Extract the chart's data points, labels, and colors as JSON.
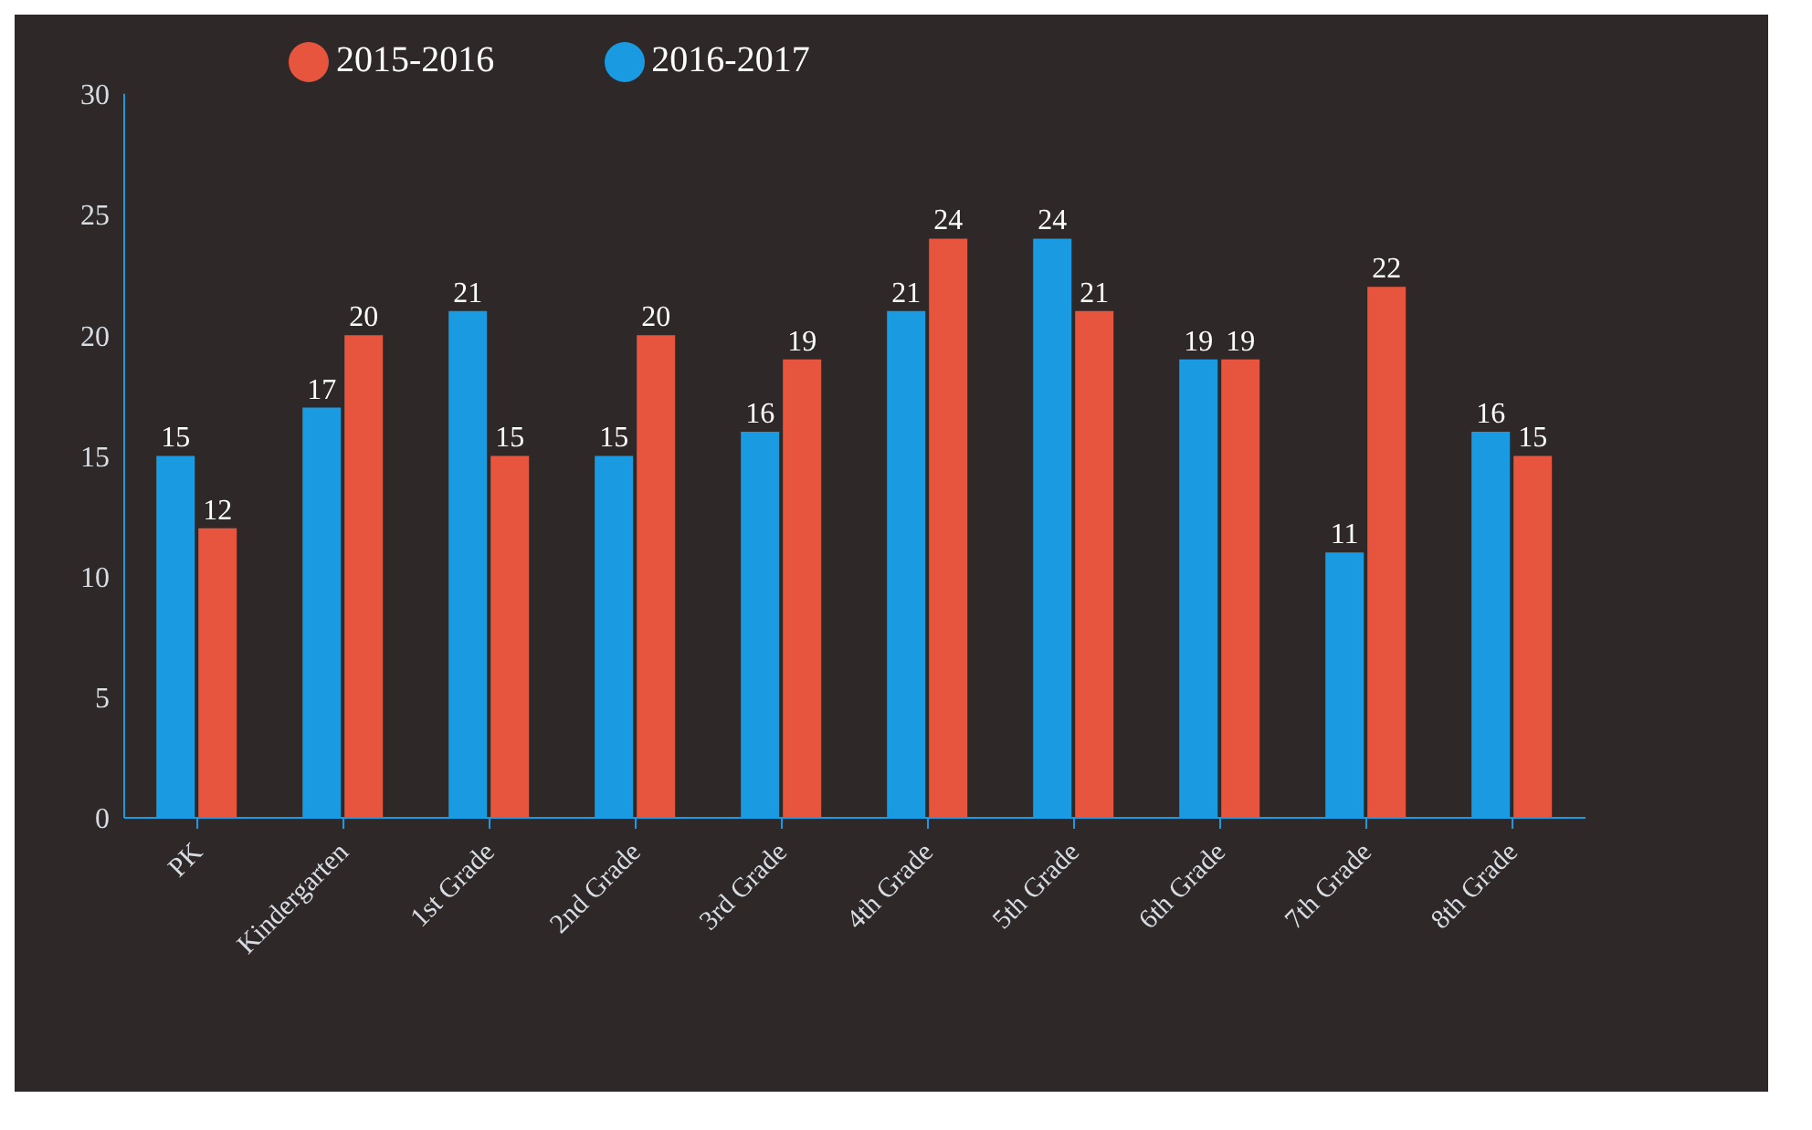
{
  "chart_data": {
    "type": "bar",
    "categories": [
      "PK",
      "Kindergarten",
      "1st Grade",
      "2nd Grade",
      "3rd Grade",
      "4th Grade",
      "5th Grade",
      "6th Grade",
      "7th Grade",
      "8th Grade"
    ],
    "series": [
      {
        "name": "2016-2017",
        "color": "#1a9ae0",
        "values": [
          15,
          17,
          21,
          15,
          16,
          21,
          24,
          19,
          11,
          16
        ]
      },
      {
        "name": "2015-2016",
        "color": "#e8553e",
        "values": [
          12,
          20,
          15,
          20,
          19,
          24,
          21,
          19,
          22,
          15
        ]
      }
    ],
    "ylim": [
      0,
      30
    ],
    "yticks": [
      0,
      5,
      10,
      15,
      20,
      25,
      30
    ],
    "grid": false,
    "legend": "top left",
    "data_labels": true
  }
}
